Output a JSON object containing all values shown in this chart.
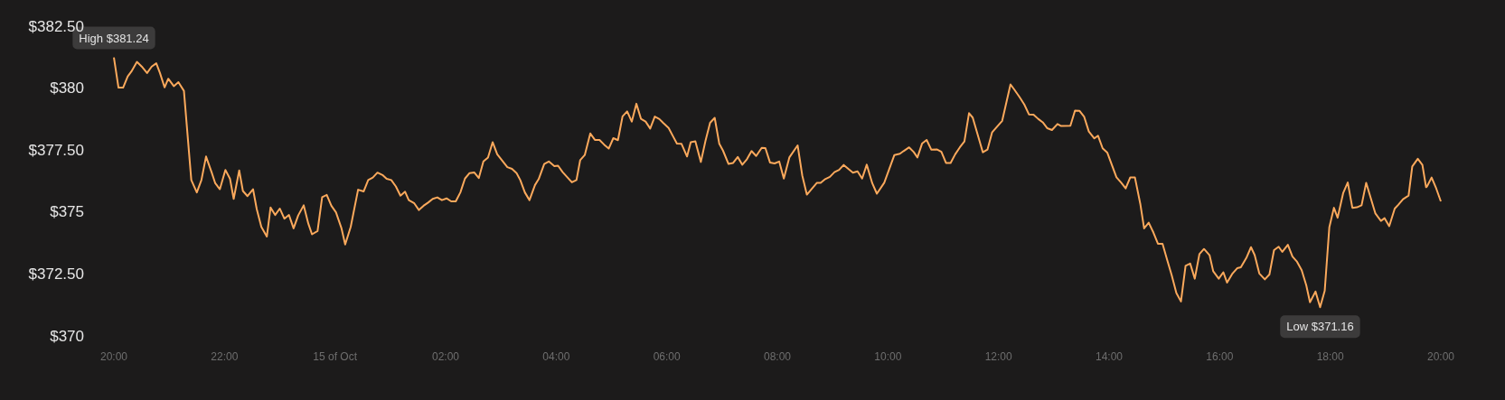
{
  "chart_data": {
    "type": "line",
    "x": [
      "--10-14T20:00",
      "--10-14T20:05",
      "--10-14T20:10",
      "--10-14T20:15",
      "--10-14T20:19",
      "--10-14T20:25",
      "--10-14T20:31",
      "--10-14T20:36",
      "--10-14T20:41",
      "--10-14T20:46",
      "--10-14T20:50",
      "--10-14T20:55",
      "--10-14T20:59",
      "--10-14T21:05",
      "--10-14T21:10",
      "--10-14T21:16",
      "--10-14T21:24",
      "--10-14T21:30",
      "--10-14T21:35",
      "--10-14T21:40",
      "--10-14T21:46",
      "--10-14T21:50",
      "--10-14T21:55",
      "--10-14T22:01",
      "--10-14T22:06",
      "--10-14T22:10",
      "--10-14T22:16",
      "--10-14T22:20",
      "--10-14T22:25",
      "--10-14T22:31",
      "--10-14T22:35",
      "--10-14T22:40",
      "--10-14T22:46",
      "--10-14T22:50",
      "--10-14T22:55",
      "--10-14T23:00",
      "--10-14T23:05",
      "--10-14T23:10",
      "--10-14T23:15",
      "--10-14T23:20",
      "--10-14T23:26",
      "--10-14T23:31",
      "--10-14T23:35",
      "--10-14T23:41",
      "--10-14T23:46",
      "--10-14T23:51",
      "--10-14T23:56",
      "--10-15T00:01",
      "--10-15T00:07",
      "--10-15T00:11",
      "--10-15T00:17",
      "--10-15T00:25",
      "--10-15T00:31",
      "--10-15T00:36",
      "--10-15T00:41",
      "--10-15T00:46",
      "--10-15T00:52",
      "--10-15T00:56",
      "--10-15T01:01",
      "--10-15T01:06",
      "--10-15T01:11",
      "--10-15T01:16",
      "--10-15T01:20",
      "--10-15T01:26",
      "--10-15T01:31",
      "--10-15T01:36",
      "--10-15T01:41",
      "--10-15T01:46",
      "--10-15T01:51",
      "--10-15T01:56",
      "--10-15T02:01",
      "--10-15T02:06",
      "--10-15T02:11",
      "--10-15T02:16",
      "--10-15T02:21",
      "--10-15T02:26",
      "--10-15T02:31",
      "--10-15T02:36",
      "--10-15T02:41",
      "--10-15T02:46",
      "--10-15T02:51",
      "--10-15T02:56",
      "--10-15T03:07",
      "--10-15T03:12",
      "--10-15T03:17",
      "--10-15T03:21",
      "--10-15T03:26",
      "--10-15T03:31",
      "--10-15T03:37",
      "--10-15T03:41",
      "--10-15T03:47",
      "--10-15T03:52",
      "--10-15T03:58",
      "--10-15T04:02",
      "--10-15T04:07",
      "--10-15T04:17",
      "--10-15T04:22",
      "--10-15T04:26",
      "--10-15T04:31",
      "--10-15T04:37",
      "--10-15T04:42",
      "--10-15T04:47",
      "--10-15T04:52",
      "--10-15T04:57",
      "--10-15T05:02",
      "--10-15T05:07",
      "--10-15T05:12",
      "--10-15T05:17",
      "--10-15T05:22",
      "--10-15T05:27",
      "--10-15T05:32",
      "--10-15T05:37",
      "--10-15T05:42",
      "--10-15T05:47",
      "--10-15T05:52",
      "--10-15T05:56",
      "--10-15T06:02",
      "--10-15T06:07",
      "--10-15T06:11",
      "--10-15T06:16",
      "--10-15T06:22",
      "--10-15T06:26",
      "--10-15T06:31",
      "--10-15T06:37",
      "--10-15T06:42",
      "--10-15T06:47",
      "--10-15T06:52",
      "--10-15T06:57",
      "--10-15T07:01",
      "--10-15T07:07",
      "--10-15T07:12",
      "--10-15T07:17",
      "--10-15T07:22",
      "--10-15T07:27",
      "--10-15T07:32",
      "--10-15T07:37",
      "--10-15T07:43",
      "--10-15T07:47",
      "--10-15T07:52",
      "--10-15T07:57",
      "--10-15T08:02",
      "--10-15T08:07",
      "--10-15T08:13",
      "--10-15T08:22",
      "--10-15T08:27",
      "--10-15T08:32",
      "--10-15T08:38",
      "--10-15T08:43",
      "--10-15T08:47",
      "--10-15T08:52",
      "--10-15T08:57",
      "--10-15T09:02",
      "--10-15T09:07",
      "--10-15T09:12",
      "--10-15T09:17",
      "--10-15T09:22",
      "--10-15T09:27",
      "--10-15T09:32",
      "--10-15T09:37",
      "--10-15T09:43",
      "--10-15T09:48",
      "--10-15T09:56",
      "--10-15T10:07",
      "--10-15T10:13",
      "--10-15T10:17",
      "--10-15T10:23",
      "--10-15T10:28",
      "--10-15T10:32",
      "--10-15T10:37",
      "--10-15T10:42",
      "--10-15T10:47",
      "--10-15T10:53",
      "--10-15T10:58",
      "--10-15T11:03",
      "--10-15T11:08",
      "--10-15T11:13",
      "--10-15T11:18",
      "--10-15T11:23",
      "--10-15T11:28",
      "--10-15T11:32",
      "--10-15T11:43",
      "--10-15T11:48",
      "--10-15T11:53",
      "--10-15T11:59",
      "--10-15T12:04",
      "--10-15T12:13",
      "--10-15T12:17",
      "--10-15T12:23",
      "--10-15T12:28",
      "--10-15T12:33",
      "--10-15T12:38",
      "--10-15T12:43",
      "--10-15T12:48",
      "--10-15T12:53",
      "--10-15T12:58",
      "--10-15T13:04",
      "--10-15T13:08",
      "--10-15T13:18",
      "--10-15T13:23",
      "--10-15T13:28",
      "--10-15T13:33",
      "--10-15T13:38",
      "--10-15T13:44",
      "--10-15T13:48",
      "--10-15T13:53",
      "--10-15T13:58",
      "--10-15T14:08",
      "--10-15T14:13",
      "--10-15T14:18",
      "--10-15T14:23",
      "--10-15T14:28",
      "--10-15T14:34",
      "--10-15T14:38",
      "--10-15T14:43",
      "--10-15T14:48",
      "--10-15T14:53",
      "--10-15T14:58",
      "--10-15T15:03",
      "--10-15T15:08",
      "--10-15T15:13",
      "--10-15T15:18",
      "--10-15T15:23",
      "--10-15T15:28",
      "--10-15T15:33",
      "--10-15T15:38",
      "--10-15T15:43",
      "--10-15T15:49",
      "--10-15T15:53",
      "--10-15T15:59",
      "--10-15T16:04",
      "--10-15T16:08",
      "--10-15T16:14",
      "--10-15T16:19",
      "--10-15T16:23",
      "--10-15T16:29",
      "--10-15T16:34",
      "--10-15T16:38",
      "--10-15T16:43",
      "--10-15T16:49",
      "--10-15T16:54",
      "--10-15T16:59",
      "--10-15T17:04",
      "--10-15T17:08",
      "--10-15T17:14",
      "--10-15T17:19",
      "--10-15T17:24",
      "--10-15T17:29",
      "--10-15T17:34",
      "--10-15T17:38",
      "--10-15T17:44",
      "--10-15T17:49",
      "--10-15T17:54",
      "--10-15T17:59",
      "--10-15T18:04",
      "--10-15T18:08",
      "--10-15T18:14",
      "--10-15T18:19",
      "--10-15T18:24",
      "--10-15T18:29",
      "--10-15T18:34",
      "--10-15T18:39",
      "--10-15T18:44",
      "--10-15T18:49",
      "--10-15T18:55",
      "--10-15T18:59",
      "--10-15T19:04",
      "--10-15T19:10",
      "--10-15T19:14",
      "--10-15T19:19",
      "--10-15T19:25",
      "--10-15T19:29",
      "--10-15T19:35",
      "--10-15T19:40",
      "--10-15T19:44",
      "--10-15T19:45",
      "--10-15T19:50",
      "--10-15T19:55",
      "--10-15T20:00"
    ],
    "series": [
      {
        "color": "#fba95c",
        "values": [
          381.24,
          380.02,
          380.02,
          380.47,
          380.67,
          381.06,
          380.84,
          380.61,
          380.87,
          381.0,
          380.61,
          380.03,
          380.38,
          380.08,
          380.24,
          379.89,
          376.29,
          375.79,
          376.29,
          377.24,
          376.61,
          376.16,
          375.92,
          376.7,
          376.34,
          375.53,
          376.68,
          375.85,
          375.64,
          375.92,
          375.12,
          374.4,
          374.01,
          375.18,
          374.88,
          375.14,
          374.73,
          374.88,
          374.34,
          374.86,
          375.27,
          374.53,
          374.1,
          374.23,
          375.6,
          375.69,
          375.25,
          374.99,
          374.34,
          373.69,
          374.4,
          375.9,
          375.83,
          376.29,
          376.39,
          376.59,
          376.48,
          376.34,
          376.29,
          376.03,
          375.66,
          375.82,
          375.48,
          375.35,
          375.08,
          375.25,
          375.38,
          375.53,
          375.59,
          375.48,
          375.55,
          375.43,
          375.43,
          375.79,
          376.35,
          376.57,
          376.6,
          376.37,
          377.04,
          377.2,
          377.82,
          377.33,
          376.81,
          376.74,
          376.57,
          376.29,
          375.79,
          375.48,
          376.09,
          376.33,
          376.94,
          377.04,
          376.85,
          376.87,
          376.61,
          376.2,
          376.29,
          377.09,
          377.3,
          378.17,
          377.91,
          377.91,
          377.72,
          377.56,
          377.98,
          377.9,
          378.86,
          379.06,
          378.65,
          379.37,
          378.76,
          378.65,
          378.37,
          378.85,
          378.75,
          378.6,
          378.39,
          378.04,
          377.76,
          377.75,
          377.24,
          377.82,
          377.85,
          377.02,
          377.87,
          378.6,
          378.8,
          377.75,
          377.48,
          376.94,
          376.98,
          377.22,
          376.91,
          377.13,
          377.46,
          377.26,
          377.59,
          377.58,
          377.0,
          376.96,
          377.04,
          376.35,
          377.2,
          377.69,
          376.48,
          375.7,
          375.96,
          376.18,
          376.18,
          376.33,
          376.42,
          376.61,
          376.7,
          376.9,
          376.74,
          376.59,
          376.64,
          376.35,
          376.91,
          376.16,
          375.74,
          376.18,
          377.3,
          377.35,
          377.46,
          377.61,
          377.42,
          377.2,
          377.76,
          377.91,
          377.52,
          377.53,
          377.43,
          376.98,
          376.98,
          377.33,
          377.61,
          377.85,
          378.99,
          378.81,
          377.41,
          377.52,
          378.21,
          378.47,
          378.68,
          380.15,
          379.95,
          379.63,
          379.34,
          378.94,
          378.93,
          378.76,
          378.62,
          378.38,
          378.31,
          378.55,
          378.47,
          378.48,
          379.09,
          379.08,
          378.84,
          378.25,
          377.97,
          378.08,
          377.57,
          377.4,
          376.4,
          376.19,
          375.95,
          376.4,
          376.4,
          375.3,
          374.34,
          374.57,
          374.18,
          373.72,
          373.72,
          373.07,
          372.44,
          371.73,
          371.39,
          372.83,
          372.92,
          372.31,
          373.3,
          373.51,
          373.26,
          372.61,
          372.31,
          372.57,
          372.15,
          372.52,
          372.73,
          372.77,
          373.15,
          373.58,
          373.26,
          372.52,
          372.28,
          372.48,
          373.46,
          373.6,
          373.39,
          373.68,
          373.2,
          372.99,
          372.65,
          372.04,
          371.36,
          371.79,
          371.16,
          371.82,
          374.38,
          375.17,
          374.77,
          375.76,
          376.19,
          375.17,
          375.19,
          375.27,
          376.18,
          375.56,
          374.94,
          374.64,
          374.75,
          374.43,
          375.14,
          375.3,
          375.52,
          375.66,
          376.84,
          377.15,
          376.9,
          376.0,
          376.03,
          376.39,
          375.95,
          375.43
        ]
      }
    ],
    "xlim": [
      "--10-14T20:00",
      "--10-15T20:00"
    ],
    "xticks": [
      {
        "value": "--10-14T20:00",
        "label": "20:00"
      },
      {
        "value": "--10-14T22:00",
        "label": "22:00"
      },
      {
        "value": "--10-15T00:00",
        "label": "15 of Oct"
      },
      {
        "value": "--10-15T02:00",
        "label": "02:00"
      },
      {
        "value": "--10-15T04:00",
        "label": "04:00"
      },
      {
        "value": "--10-15T06:00",
        "label": "06:00"
      },
      {
        "value": "--10-15T08:00",
        "label": "08:00"
      },
      {
        "value": "--10-15T10:00",
        "label": "10:00"
      },
      {
        "value": "--10-15T12:00",
        "label": "12:00"
      },
      {
        "value": "--10-15T14:00",
        "label": "14:00"
      },
      {
        "value": "--10-15T16:00",
        "label": "16:00"
      },
      {
        "value": "--10-15T18:00",
        "label": "18:00"
      },
      {
        "value": "--10-15T20:00",
        "label": "20:00"
      }
    ],
    "ylim": [
      370,
      382.5
    ],
    "yticks": [
      {
        "value": 370,
        "label": "$370"
      },
      {
        "value": 372.5,
        "label": "$372.50"
      },
      {
        "value": 375,
        "label": "$375"
      },
      {
        "value": 377.5,
        "label": "$377.50"
      },
      {
        "value": 380,
        "label": "$380"
      },
      {
        "value": 382.5,
        "label": "$382.50"
      }
    ],
    "annotations": [
      {
        "text": "High $381.24",
        "x": "--10-14T20:00",
        "y": 381.24
      },
      {
        "text": "Low $371.16",
        "x": "--10-15T17:49",
        "y": 371.16
      }
    ],
    "grid": false,
    "marker": "none",
    "line_style": "solid"
  }
}
